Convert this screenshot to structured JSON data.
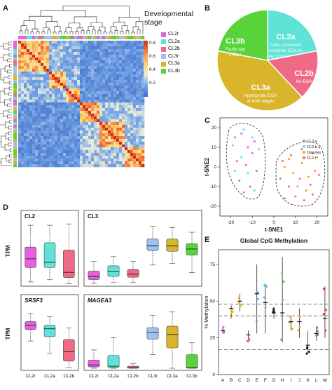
{
  "panels": {
    "a": {
      "letter": "A",
      "legend_title_line1": "Developmental",
      "legend_title_line2": "stage",
      "legend": [
        {
          "label": "CL2r",
          "color": "#e85fe0"
        },
        {
          "label": "CL2a",
          "color": "#5fe3d6"
        },
        {
          "label": "CL2b",
          "color": "#f06a86"
        },
        {
          "label": "CL3r",
          "color": "#9cc3f0"
        },
        {
          "label": "CL3a",
          "color": "#d8b52a"
        },
        {
          "label": "CL3b",
          "color": "#58d43a"
        }
      ],
      "colorbar_ticks": [
        "0.8",
        "0.6",
        "0.4",
        "0.2"
      ]
    },
    "b": {
      "letter": "B",
      "slices": [
        {
          "name": "CL2a",
          "text1": "Cells successful",
          "text2": "complete EGA on",
          "text3": "day 2 but not day 3",
          "value": 22,
          "color": "#5fe3d6"
        },
        {
          "name": "CL2b",
          "text1": "No EGA",
          "text2": "",
          "text3": "",
          "value": 16,
          "color": "#f06a86"
        },
        {
          "name": "CL3a",
          "text1": "Appropriate EGA",
          "text2": "at both stages",
          "text3": "",
          "value": 40,
          "color": "#d8b52a"
        },
        {
          "name": "CL3b",
          "text1": "Faulty day",
          "text2": "3 EGA",
          "text3": "",
          "value": 22,
          "color": "#58d43a"
        }
      ]
    },
    "c": {
      "letter": "C",
      "xlabel": "t-SNE1",
      "ylabel": "t-SNE2",
      "xticks": [
        "-20",
        "-10",
        "0",
        "10",
        "20"
      ],
      "yticks": [
        "20",
        "10",
        "0",
        "-10",
        "-20"
      ],
      "legend": [
        {
          "label": "CL2.a",
          "color": "#e85fe0"
        },
        {
          "label": "CL2.b",
          "color": "#5fe3d6"
        },
        {
          "label": "Oocytes",
          "color": "#f0a020"
        },
        {
          "label": "CL2.r",
          "color": "#f06a86"
        }
      ]
    },
    "d": {
      "letter": "D",
      "ylabel": "TPM",
      "subplots": [
        {
          "title": "CL2",
          "italic": false
        },
        {
          "title": "CL3",
          "italic": false
        },
        {
          "title": "SRSF3",
          "italic": true
        },
        {
          "title": "MAGEA3",
          "italic": true
        }
      ],
      "xlabels_left": [
        "CL2r",
        "CL2a",
        "CL2b"
      ],
      "xlabels_right": [
        "CL2r",
        "CL2a",
        "CL2b",
        "CL3r",
        "CL3a",
        "CL3b"
      ]
    },
    "e": {
      "letter": "E",
      "title": "Global CpG Methylation",
      "ylabel": "% Methylation",
      "yticks": [
        "0",
        "25",
        "50",
        "75"
      ]
    }
  },
  "chart_data": [
    {
      "type": "heatmap",
      "panel": "A",
      "legend_title": "Developmental stage",
      "groups": [
        "CL2r",
        "CL2a",
        "CL2b",
        "CL3r",
        "CL3a",
        "CL3b"
      ],
      "colorbar_range": [
        0.1,
        0.9
      ]
    },
    {
      "type": "pie",
      "panel": "B",
      "labels": [
        "CL2a",
        "CL2b",
        "CL3a",
        "CL3b"
      ],
      "values": [
        22,
        16,
        40,
        22
      ]
    },
    {
      "type": "scatter",
      "panel": "C",
      "xlabel": "t-SNE1",
      "ylabel": "t-SNE2",
      "xlim": [
        -25,
        25
      ],
      "ylim": [
        -25,
        25
      ],
      "series": [
        {
          "name": "CL2.a",
          "points": [
            [
              -18,
              15
            ],
            [
              -15,
              17
            ],
            [
              -12,
              10
            ],
            [
              -9,
              13
            ],
            [
              -17,
              3
            ],
            [
              -13,
              1
            ],
            [
              -10,
              7
            ],
            [
              -16,
              -7
            ],
            [
              -11,
              -10
            ],
            [
              -8,
              -2
            ],
            [
              -14,
              -13
            ]
          ]
        },
        {
          "name": "CL2.b",
          "points": [
            [
              -19,
              11
            ],
            [
              -14,
              19
            ],
            [
              -10,
              15
            ],
            [
              -7,
              9
            ],
            [
              -12,
              -3
            ],
            [
              -18,
              -2
            ],
            [
              -9,
              -12
            ],
            [
              -15,
              5
            ]
          ]
        },
        {
          "name": "Oocytes",
          "points": [
            [
              5,
              0
            ],
            [
              9,
              -3
            ],
            [
              13,
              2
            ],
            [
              16,
              -5
            ],
            [
              19,
              -2
            ],
            [
              11,
              -10
            ],
            [
              7,
              4
            ],
            [
              15,
              -12
            ],
            [
              20,
              5
            ]
          ]
        },
        {
          "name": "CL2.r",
          "points": [
            [
              3,
              -6
            ],
            [
              7,
              -10
            ],
            [
              12,
              -6
            ],
            [
              17,
              -9
            ],
            [
              21,
              -4
            ],
            [
              10,
              -15
            ],
            [
              14,
              -17
            ],
            [
              18,
              -14
            ],
            [
              5,
              -16
            ],
            [
              8,
              6
            ],
            [
              13,
              9
            ],
            [
              18,
              7
            ],
            [
              21,
              10
            ],
            [
              4,
              3
            ]
          ]
        }
      ]
    },
    {
      "type": "box",
      "panel": "D",
      "subplot": "CL2",
      "categories": [
        "CL2r",
        "CL2a",
        "CL2b"
      ],
      "boxes": [
        {
          "min": 0.5,
          "q1": 3.8,
          "median": 5.8,
          "q3": 8.5,
          "max": 13.5
        },
        {
          "min": 1.0,
          "q1": 3.8,
          "median": 5.0,
          "q3": 9.5,
          "max": 13.5
        },
        {
          "min": 0.1,
          "q1": 1.5,
          "median": 2.7,
          "q3": 7.8,
          "max": 13.8
        }
      ]
    },
    {
      "type": "box",
      "panel": "D",
      "subplot": "CL3",
      "categories": [
        "CL2r",
        "CL2a",
        "CL2b",
        "CL3r",
        "CL3a",
        "CL3b"
      ],
      "boxes": [
        {
          "min": 0.1,
          "q1": 0.6,
          "median": 1.0,
          "q3": 1.7,
          "max": 3.0
        },
        {
          "min": 0.2,
          "q1": 1.0,
          "median": 1.6,
          "q3": 2.4,
          "max": 3.6
        },
        {
          "min": 0.2,
          "q1": 0.9,
          "median": 1.3,
          "q3": 1.9,
          "max": 3.0
        },
        {
          "min": 2.5,
          "q1": 4.4,
          "median": 5.0,
          "q3": 5.9,
          "max": 7.6
        },
        {
          "min": 2.7,
          "q1": 4.3,
          "median": 5.0,
          "q3": 5.9,
          "max": 7.4
        },
        {
          "min": 1.5,
          "q1": 3.8,
          "median": 4.6,
          "q3": 5.3,
          "max": 6.8
        }
      ]
    },
    {
      "type": "box",
      "panel": "D",
      "subplot": "SRSF3",
      "categories": [
        "CL2r",
        "CL2a",
        "CL2b"
      ],
      "boxes": [
        {
          "min": 3.8,
          "q1": 5.4,
          "median": 6.0,
          "q3": 6.5,
          "max": 7.6
        },
        {
          "min": 2.0,
          "q1": 4.4,
          "median": 5.5,
          "q3": 6.0,
          "max": 7.2
        },
        {
          "min": 0.1,
          "q1": 1.0,
          "median": 2.3,
          "q3": 4.0,
          "max": 5.6
        }
      ]
    },
    {
      "type": "box",
      "panel": "D",
      "subplot": "MAGEA3",
      "categories": [
        "CL2r",
        "CL2a",
        "CL2b",
        "CL3r",
        "CL3a",
        "CL3b"
      ],
      "boxes": [
        {
          "min": 0.0,
          "q1": 0.2,
          "median": 0.5,
          "q3": 1.2,
          "max": 2.7
        },
        {
          "min": 0.0,
          "q1": 0.1,
          "median": 0.3,
          "q3": 1.9,
          "max": 4.5
        },
        {
          "min": 0.0,
          "q1": 0.0,
          "median": 0.1,
          "q3": 0.3,
          "max": 0.7
        },
        {
          "min": 2.0,
          "q1": 4.3,
          "median": 5.3,
          "q3": 6.0,
          "max": 7.8
        },
        {
          "min": 0.0,
          "q1": 3.0,
          "median": 5.0,
          "q3": 6.2,
          "max": 8.3
        },
        {
          "min": 0.0,
          "q1": 0.0,
          "median": 0.1,
          "q3": 2.0,
          "max": 3.8
        }
      ]
    },
    {
      "type": "scatter",
      "panel": "E",
      "title": "Global CpG Methylation",
      "ylabel": "% Methylation",
      "ylim": [
        0,
        85
      ],
      "categories": [
        "A",
        "B",
        "C",
        "D",
        "E",
        "F",
        "G",
        "H",
        "I",
        "J",
        "K",
        "L",
        "M"
      ],
      "means": [
        30,
        45,
        50,
        27,
        55,
        49,
        42,
        42,
        36,
        36,
        20,
        28,
        38
      ],
      "ranges": [
        [
          28,
          33
        ],
        [
          38,
          47
        ],
        [
          43,
          55
        ],
        [
          22,
          30
        ],
        [
          28,
          75
        ],
        [
          28,
          62
        ],
        [
          38,
          46
        ],
        [
          22,
          80
        ],
        [
          30,
          40
        ],
        [
          25,
          45
        ],
        [
          14,
          30
        ],
        [
          23,
          33
        ],
        [
          25,
          60
        ]
      ],
      "reference_lines": [
        48,
        40,
        17
      ]
    }
  ]
}
